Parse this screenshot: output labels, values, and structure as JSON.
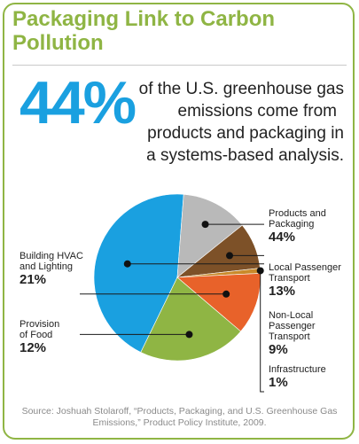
{
  "title": "Packaging Link to Carbon Pollution",
  "headline": {
    "big_number": "44%",
    "line1": "of the U.S. greenhouse gas",
    "line2": "emissions come from",
    "line3": "products and packaging in",
    "line4": "a systems-based analysis."
  },
  "source": "Source: Joshuah Stolaroff, “Products, Packaging, and U.S. Greenhouse Gas Emissions,” Product Policy Institute, 2009.",
  "colors": {
    "products": "#1aa0e0",
    "local_transport": "#b9b9b9",
    "nonlocal_transport": "#7d5128",
    "infrastructure": "#c98a2a",
    "food": "#e8622a",
    "hvac": "#8fb544",
    "accent_green": "#8fb544"
  },
  "chart_data": {
    "type": "pie",
    "title": "",
    "series": [
      {
        "name": "",
        "values": [
          44,
          13,
          9,
          1,
          12,
          21
        ]
      }
    ],
    "categories": [
      "Products and Packaging",
      "Local Passenger Transport",
      "Non-Local Passenger Transport",
      "Infrastructure",
      "Provision of Food",
      "Building HVAC and Lighting"
    ],
    "slices": [
      {
        "label": "Products and\nPackaging",
        "value": 44,
        "pct": "44%",
        "color": "#1aa0e0"
      },
      {
        "label": "Local Passenger\nTransport",
        "value": 13,
        "pct": "13%",
        "color": "#b9b9b9"
      },
      {
        "label": "Non-Local\nPassenger\nTransport",
        "value": 9,
        "pct": "9%",
        "color": "#7d5128"
      },
      {
        "label": "Infrastructure",
        "value": 1,
        "pct": "1%",
        "color": "#c98a2a"
      },
      {
        "label": "Provision\nof Food",
        "value": 12,
        "pct": "12%",
        "color": "#e8622a"
      },
      {
        "label": "Building HVAC\nand Lighting",
        "value": 21,
        "pct": "21%",
        "color": "#8fb544"
      }
    ]
  }
}
